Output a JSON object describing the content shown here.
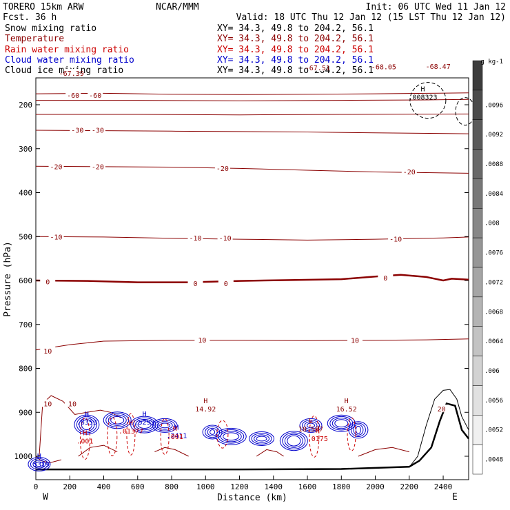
{
  "header": {
    "model": "TORERO  15km ARW",
    "org": "NCAR/MMM",
    "init": "Init: 06 UTC Wed 11 Jan 12",
    "fcst": "Fcst.   36 h",
    "valid": "Valid: 18 UTC Thu 12 Jan 12 (15 LST Thu 12 Jan 12)",
    "fields": [
      {
        "label": "Snow mixing ratio",
        "xy": "",
        "color": "#000000"
      },
      {
        "label": "Temperature",
        "xy": "XY=  34.3, 49.8 to 204.2, 56.1",
        "color": "#8b0000"
      },
      {
        "label": "Rain water mixing ratio",
        "xy": "XY=  34.3, 49.8 to 204.2, 56.1",
        "color": "#cc0000"
      },
      {
        "label": "Cloud water mixing ratio",
        "xy": "XY=  34.3, 49.8 to 204.2, 56.1",
        "color": "#0000cc"
      },
      {
        "label": "Cloud ice mixing ratio",
        "xy": "XY=  34.3, 49.8 to 204.2, 56.1",
        "color": "#000000"
      }
    ],
    "snow_xy": "XY=  34.3, 49.8 to 204.2, 56.1"
  },
  "chart_data": {
    "type": "cross-section contour",
    "xlabel": "Distance (km)",
    "ylabel": "Pressure (hPa)",
    "x_ticks": [
      0,
      200,
      400,
      600,
      800,
      1000,
      1200,
      1400,
      1600,
      1800,
      2000,
      2200,
      2400
    ],
    "y_ticks": [
      200,
      300,
      400,
      500,
      600,
      700,
      800,
      900,
      1000
    ],
    "xlim": [
      0,
      2550
    ],
    "ylim": [
      1050,
      105
    ],
    "x_end_labels": {
      "left": "W",
      "right": "E"
    },
    "temperature_contours": [
      {
        "value": -60,
        "points": [
          [
            0,
            175
          ],
          [
            400,
            174
          ],
          [
            800,
            176
          ],
          [
            1200,
            177
          ],
          [
            1600,
            176
          ],
          [
            2000,
            175
          ],
          [
            2300,
            174
          ],
          [
            2550,
            173
          ]
        ]
      },
      {
        "value": -50,
        "points": [
          [
            0,
            190
          ],
          [
            600,
            190
          ],
          [
            1200,
            191
          ],
          [
            1800,
            190
          ],
          [
            2300,
            189
          ],
          [
            2550,
            188
          ]
        ]
      },
      {
        "value": -40,
        "points": [
          [
            0,
            222
          ],
          [
            600,
            222
          ],
          [
            1200,
            223
          ],
          [
            1800,
            222
          ],
          [
            2550,
            221
          ]
        ]
      },
      {
        "value": -30,
        "points": [
          [
            0,
            258
          ],
          [
            400,
            259
          ],
          [
            800,
            260
          ],
          [
            1200,
            261
          ],
          [
            1600,
            262
          ],
          [
            2000,
            264
          ],
          [
            2550,
            266
          ]
        ]
      },
      {
        "value": -20,
        "points": [
          [
            0,
            340
          ],
          [
            400,
            341
          ],
          [
            800,
            342
          ],
          [
            1200,
            345
          ],
          [
            1600,
            349
          ],
          [
            2000,
            353
          ],
          [
            2550,
            356
          ]
        ]
      },
      {
        "value": -10,
        "points": [
          [
            0,
            500
          ],
          [
            400,
            501
          ],
          [
            800,
            504
          ],
          [
            1200,
            506
          ],
          [
            1600,
            508
          ],
          [
            2000,
            506
          ],
          [
            2400,
            503
          ],
          [
            2550,
            501
          ]
        ]
      },
      {
        "value": 0,
        "bold": true,
        "points": [
          [
            0,
            600
          ],
          [
            300,
            601
          ],
          [
            600,
            604
          ],
          [
            900,
            604
          ],
          [
            1200,
            601
          ],
          [
            1500,
            599
          ],
          [
            1800,
            597
          ],
          [
            2000,
            591
          ],
          [
            2150,
            587
          ],
          [
            2300,
            592
          ],
          [
            2400,
            600
          ],
          [
            2450,
            596
          ],
          [
            2550,
            598
          ]
        ]
      },
      {
        "value": 10,
        "points": [
          [
            0,
            758
          ],
          [
            200,
            746
          ],
          [
            400,
            738
          ],
          [
            800,
            736
          ],
          [
            1200,
            736
          ],
          [
            1600,
            737
          ],
          [
            2000,
            736
          ],
          [
            2300,
            735
          ],
          [
            2550,
            733
          ]
        ]
      }
    ],
    "contour_labels": [
      {
        "text": "-67.39",
        "x": 210,
        "p": 128
      },
      {
        "text": "-60",
        "x": 220,
        "p": 178
      },
      {
        "text": "-60",
        "x": 350,
        "p": 178
      },
      {
        "text": "-30",
        "x": 245,
        "p": 257
      },
      {
        "text": "-30",
        "x": 365,
        "p": 257
      },
      {
        "text": "-20",
        "x": 120,
        "p": 340
      },
      {
        "text": "-20",
        "x": 365,
        "p": 340
      },
      {
        "text": "-20",
        "x": 1100,
        "p": 344
      },
      {
        "text": "-20",
        "x": 2200,
        "p": 352
      },
      {
        "text": "-10",
        "x": 120,
        "p": 500
      },
      {
        "text": "-10",
        "x": 940,
        "p": 503
      },
      {
        "text": "-10",
        "x": 1115,
        "p": 503
      },
      {
        "text": "-10",
        "x": 2120,
        "p": 505
      },
      {
        "text": "0",
        "x": 70,
        "p": 602
      },
      {
        "text": "0",
        "x": 940,
        "p": 606
      },
      {
        "text": "0",
        "x": 1120,
        "p": 606
      },
      {
        "text": "0",
        "x": 2060,
        "p": 594
      },
      {
        "text": "10",
        "x": 70,
        "p": 760
      },
      {
        "text": "10",
        "x": 980,
        "p": 735
      },
      {
        "text": "10",
        "x": 1880,
        "p": 736
      },
      {
        "text": "10",
        "x": 70,
        "p": 880
      },
      {
        "text": "10",
        "x": 215,
        "p": 880
      },
      {
        "text": "20",
        "x": 2390,
        "p": 892
      },
      {
        "text": "-67.51",
        "x": 1660,
        "p": 115
      },
      {
        "text": "-68.05",
        "x": 2050,
        "p": 113
      },
      {
        "text": "-68.47",
        "x": 2370,
        "p": 112
      }
    ],
    "extrema": [
      {
        "kind": "H",
        "value": "14.92",
        "x": 1000,
        "p": 895,
        "color": "#8b0000"
      },
      {
        "kind": "H",
        "value": "16.52",
        "x": 1830,
        "p": 895,
        "color": "#8b0000"
      },
      {
        "kind": "L",
        "value": "10.587",
        "x": 1620,
        "p": 940,
        "color": "#8b0000"
      },
      {
        "kind": "H",
        "value": ".008323",
        "x": 2280,
        "p": 185,
        "color": "#000000"
      },
      {
        "kind": "H",
        "value": ".2411",
        "x": 830,
        "p": 955,
        "color": "#0000cc"
      },
      {
        "kind": "H",
        "value": ".5319",
        "x": 20,
        "p": 1020,
        "color": "#0000cc"
      },
      {
        "kind": "H",
        "value": ".6353",
        "x": 300,
        "p": 925,
        "color": "#0000cc"
      },
      {
        "kind": "H",
        "value": ".5293",
        "x": 640,
        "p": 925,
        "color": "#0000cc"
      },
      {
        "kind": "H",
        "value": ".01377",
        "x": 560,
        "p": 945,
        "color": "#cc0000"
      },
      {
        "kind": "H",
        "value": ".001",
        "x": 290,
        "p": 968,
        "color": "#cc0000"
      },
      {
        "kind": "H",
        "value": ".001",
        "x": 820,
        "p": 958,
        "color": "#cc0000"
      },
      {
        "kind": "H",
        "value": ".0175",
        "x": 1660,
        "p": 962,
        "color": "#cc0000"
      }
    ],
    "terrain": [
      [
        0,
        1030
      ],
      [
        600,
        1030
      ],
      [
        1200,
        1030
      ],
      [
        1800,
        1029
      ],
      [
        2200,
        1024
      ],
      [
        2260,
        1010
      ],
      [
        2330,
        980
      ],
      [
        2380,
        920
      ],
      [
        2420,
        880
      ],
      [
        2470,
        885
      ],
      [
        2510,
        940
      ],
      [
        2550,
        960
      ]
    ],
    "terrain_outline": [
      [
        2200,
        1025
      ],
      [
        2250,
        1000
      ],
      [
        2300,
        930
      ],
      [
        2350,
        870
      ],
      [
        2400,
        850
      ],
      [
        2440,
        848
      ],
      [
        2480,
        870
      ],
      [
        2510,
        910
      ],
      [
        2550,
        940
      ]
    ],
    "colorbar": {
      "unit": "g kg-1",
      "labels": [
        ".0096",
        ".0092",
        ".0088",
        ".0084",
        ".008",
        ".0076",
        ".0072",
        ".0068",
        ".0064",
        ".006",
        ".0056",
        ".0052",
        ".0048"
      ]
    }
  }
}
